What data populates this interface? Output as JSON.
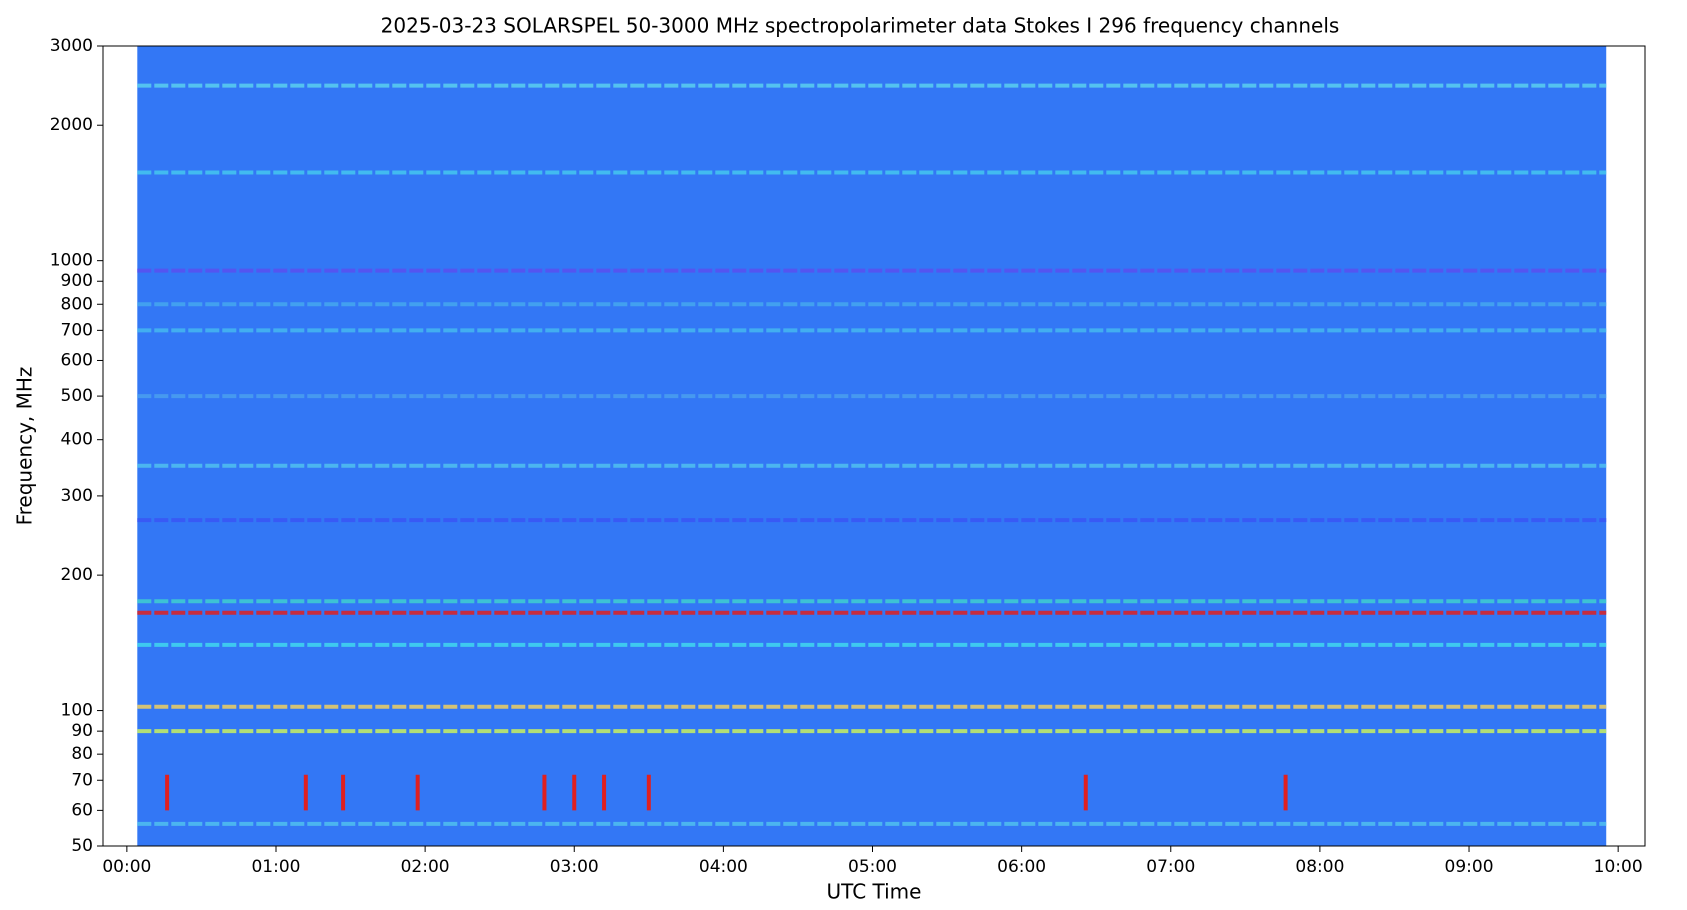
{
  "chart_data": {
    "type": "spectrogram",
    "title": "2025-03-23      SOLARSPEL   50-3000 MHz spectropolarimeter data      Stokes I   296 frequency channels",
    "xlabel": "UTC Time",
    "ylabel": "Frequency, MHz",
    "ylog": true,
    "ylim": [
      50,
      3000
    ],
    "yticks": [
      50,
      60,
      70,
      80,
      90,
      100,
      200,
      300,
      400,
      500,
      600,
      700,
      800,
      900,
      1000,
      2000,
      3000
    ],
    "xlim": [
      -0.16,
      10.18
    ],
    "xticks": [
      {
        "value": 0,
        "label": "00:00"
      },
      {
        "value": 1,
        "label": "01:00"
      },
      {
        "value": 2,
        "label": "02:00"
      },
      {
        "value": 3,
        "label": "03:00"
      },
      {
        "value": 4,
        "label": "04:00"
      },
      {
        "value": 5,
        "label": "05:00"
      },
      {
        "value": 6,
        "label": "06:00"
      },
      {
        "value": 7,
        "label": "07:00"
      },
      {
        "value": 8,
        "label": "08:00"
      },
      {
        "value": 9,
        "label": "09:00"
      },
      {
        "value": 10,
        "label": "10:00"
      }
    ],
    "background_color": "#3377f5",
    "data_xlim": [
      0.07,
      9.92
    ],
    "bands": [
      {
        "freq": 2450,
        "color": "#5ad0f0"
      },
      {
        "freq": 1570,
        "color": "#45c8f0"
      },
      {
        "freq": 950,
        "color": "#5a50f0"
      },
      {
        "freq": 800,
        "color": "#45a8f0"
      },
      {
        "freq": 700,
        "color": "#45b8f0"
      },
      {
        "freq": 500,
        "color": "#4aa0f0"
      },
      {
        "freq": 350,
        "color": "#50c0f0"
      },
      {
        "freq": 265,
        "color": "#3a55f5"
      },
      {
        "freq": 175,
        "color": "#3fd0d0"
      },
      {
        "freq": 165,
        "color": "#e02020"
      },
      {
        "freq": 140,
        "color": "#40d8f0"
      },
      {
        "freq": 102,
        "color": "#f0d060"
      },
      {
        "freq": 90,
        "color": "#c8f060"
      },
      {
        "freq": 56,
        "color": "#50c0f0"
      }
    ],
    "bursts": {
      "x": [
        0.27,
        1.2,
        1.45,
        1.95,
        2.8,
        3.0,
        3.2,
        3.5,
        6.43,
        7.77
      ],
      "color": "#e02020",
      "ylim": [
        60,
        72
      ]
    }
  }
}
